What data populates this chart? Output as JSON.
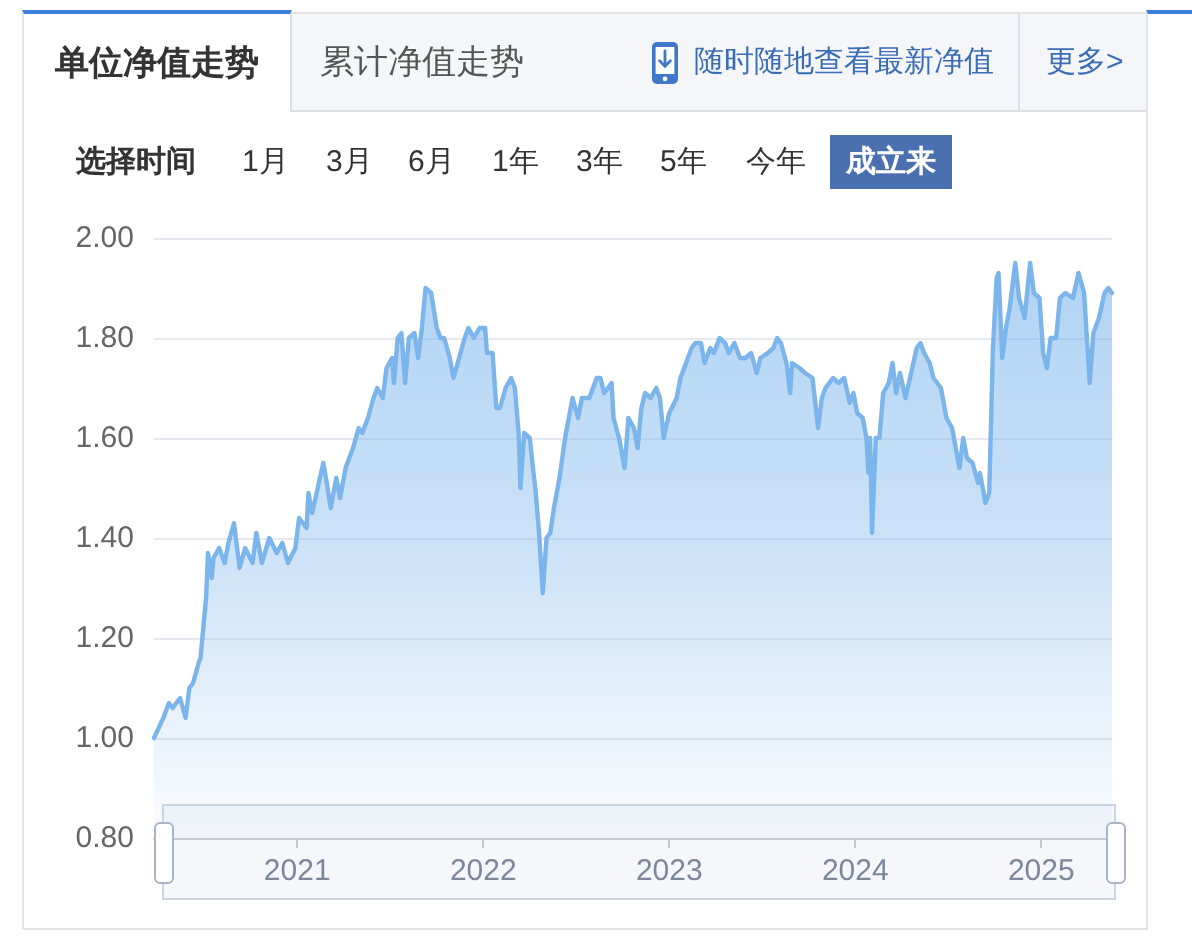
{
  "chart_data": {
    "type": "area",
    "title": "单位净值走势",
    "annotations": [
      "累计净值走势",
      "随时随地查看最新净值",
      "更多>",
      "选择时间",
      "1月",
      "3月",
      "6月",
      "1年",
      "3年",
      "5年",
      "今年",
      "成立来"
    ],
    "color": "#7cb5ec",
    "x": [
      2020.23,
      2020.28,
      2020.31,
      2020.33,
      2020.37,
      2020.4,
      2020.42,
      2020.44,
      2020.47,
      2020.48,
      2020.51,
      2020.52,
      2020.54,
      2020.55,
      2020.58,
      2020.61,
      2020.63,
      2020.66,
      2020.69,
      2020.72,
      2020.76,
      2020.78,
      2020.81,
      2020.85,
      2020.89,
      2020.92,
      2020.95,
      2020.99,
      2021.01,
      2021.05,
      2021.06,
      2021.08,
      2021.11,
      2021.14,
      2021.15,
      2021.18,
      2021.21,
      2021.23,
      2021.26,
      2021.3,
      2021.33,
      2021.35,
      2021.38,
      2021.41,
      2021.43,
      2021.46,
      2021.48,
      2021.51,
      2021.52,
      2021.54,
      2021.56,
      2021.58,
      2021.6,
      2021.63,
      2021.65,
      2021.67,
      2021.69,
      2021.72,
      2021.75,
      2021.77,
      2021.79,
      2021.82,
      2021.84,
      2021.87,
      2021.9,
      2021.92,
      2021.95,
      2021.98,
      2022.01,
      2022.02,
      2022.05,
      2022.07,
      2022.09,
      2022.12,
      2022.15,
      2022.17,
      2022.19,
      2022.2,
      2022.22,
      2022.25,
      2022.27,
      2022.28,
      2022.3,
      2022.32,
      2022.34,
      2022.36,
      2022.38,
      2022.41,
      2022.44,
      2022.48,
      2022.51,
      2022.53,
      2022.57,
      2022.61,
      2022.63,
      2022.65,
      2022.69,
      2022.7,
      2022.73,
      2022.76,
      2022.78,
      2022.81,
      2022.83,
      2022.85,
      2022.87,
      2022.9,
      2022.93,
      2022.95,
      2022.97,
      2023.0,
      2023.04,
      2023.06,
      2023.09,
      2023.12,
      2023.14,
      2023.17,
      2023.19,
      2023.22,
      2023.24,
      2023.27,
      2023.3,
      2023.32,
      2023.35,
      2023.38,
      2023.41,
      2023.44,
      2023.47,
      2023.49,
      2023.53,
      2023.56,
      2023.58,
      2023.6,
      2023.63,
      2023.65,
      2023.66,
      2023.7,
      2023.73,
      2023.77,
      2023.8,
      2023.82,
      2023.84,
      2023.88,
      2023.91,
      2023.94,
      2023.97,
      2023.99,
      2024.01,
      2024.04,
      2024.06,
      2024.07,
      2024.08,
      2024.09,
      2024.11,
      2024.13,
      2024.15,
      2024.18,
      2024.2,
      2024.22,
      2024.24,
      2024.27,
      2024.3,
      2024.33,
      2024.35,
      2024.37,
      2024.4,
      2024.42,
      2024.46,
      2024.49,
      2024.52,
      2024.54,
      2024.56,
      2024.58,
      2024.6,
      2024.63,
      2024.66,
      2024.67,
      2024.7,
      2024.72,
      2024.74,
      2024.76,
      2024.77,
      2024.79,
      2024.81,
      2024.83,
      2024.86,
      2024.88,
      2024.91,
      2024.94,
      2024.96,
      2024.99,
      2025.01,
      2025.03,
      2025.05,
      2025.08,
      2025.1,
      2025.13,
      2025.17,
      2025.2,
      2025.23,
      2025.26,
      2025.28,
      2025.31,
      2025.34,
      2025.36,
      2025.38
    ],
    "values": [
      1.0,
      1.04,
      1.07,
      1.06,
      1.08,
      1.04,
      1.1,
      1.11,
      1.15,
      1.16,
      1.28,
      1.37,
      1.32,
      1.36,
      1.38,
      1.35,
      1.39,
      1.43,
      1.34,
      1.38,
      1.35,
      1.41,
      1.35,
      1.4,
      1.37,
      1.39,
      1.35,
      1.38,
      1.44,
      1.42,
      1.49,
      1.45,
      1.5,
      1.55,
      1.53,
      1.46,
      1.52,
      1.48,
      1.54,
      1.58,
      1.62,
      1.61,
      1.64,
      1.68,
      1.7,
      1.68,
      1.74,
      1.76,
      1.71,
      1.8,
      1.81,
      1.71,
      1.8,
      1.81,
      1.76,
      1.82,
      1.9,
      1.89,
      1.82,
      1.8,
      1.8,
      1.76,
      1.72,
      1.76,
      1.8,
      1.82,
      1.8,
      1.82,
      1.82,
      1.77,
      1.77,
      1.66,
      1.66,
      1.7,
      1.72,
      1.7,
      1.61,
      1.5,
      1.61,
      1.6,
      1.53,
      1.5,
      1.41,
      1.29,
      1.4,
      1.41,
      1.46,
      1.52,
      1.6,
      1.68,
      1.64,
      1.68,
      1.68,
      1.72,
      1.72,
      1.69,
      1.71,
      1.64,
      1.6,
      1.54,
      1.64,
      1.62,
      1.58,
      1.66,
      1.69,
      1.68,
      1.7,
      1.68,
      1.6,
      1.65,
      1.68,
      1.72,
      1.75,
      1.78,
      1.79,
      1.79,
      1.75,
      1.78,
      1.77,
      1.8,
      1.79,
      1.77,
      1.79,
      1.76,
      1.76,
      1.77,
      1.73,
      1.76,
      1.77,
      1.78,
      1.8,
      1.79,
      1.75,
      1.69,
      1.75,
      1.74,
      1.73,
      1.72,
      1.62,
      1.68,
      1.7,
      1.72,
      1.71,
      1.72,
      1.67,
      1.69,
      1.65,
      1.64,
      1.6,
      1.53,
      1.6,
      1.41,
      1.6,
      1.6,
      1.69,
      1.71,
      1.75,
      1.69,
      1.73,
      1.68,
      1.73,
      1.78,
      1.79,
      1.77,
      1.75,
      1.72,
      1.7,
      1.64,
      1.62,
      1.58,
      1.54,
      1.6,
      1.56,
      1.55,
      1.51,
      1.53,
      1.47,
      1.49,
      1.78,
      1.92,
      1.93,
      1.76,
      1.82,
      1.86,
      1.95,
      1.88,
      1.84,
      1.95,
      1.89,
      1.88,
      1.77,
      1.74,
      1.8,
      1.8,
      1.88,
      1.89,
      1.88,
      1.93,
      1.89,
      1.71,
      1.81,
      1.84,
      1.89,
      1.9,
      1.89
    ],
    "xlim": [
      2020.23,
      2025.38
    ],
    "xticks": [
      2021,
      2022,
      2023,
      2024,
      2025
    ],
    "ylim": [
      0.8,
      2.0
    ],
    "yticks": [
      {
        "value": 0.8,
        "label": "0.80"
      },
      {
        "value": 1.0,
        "label": "1.00"
      },
      {
        "value": 1.2,
        "label": "1.20"
      },
      {
        "value": 1.4,
        "label": "1.40"
      },
      {
        "value": 1.6,
        "label": "1.60"
      },
      {
        "value": 1.8,
        "label": "1.80"
      },
      {
        "value": 2.0,
        "label": "2.00"
      }
    ],
    "grid": "y"
  }
}
